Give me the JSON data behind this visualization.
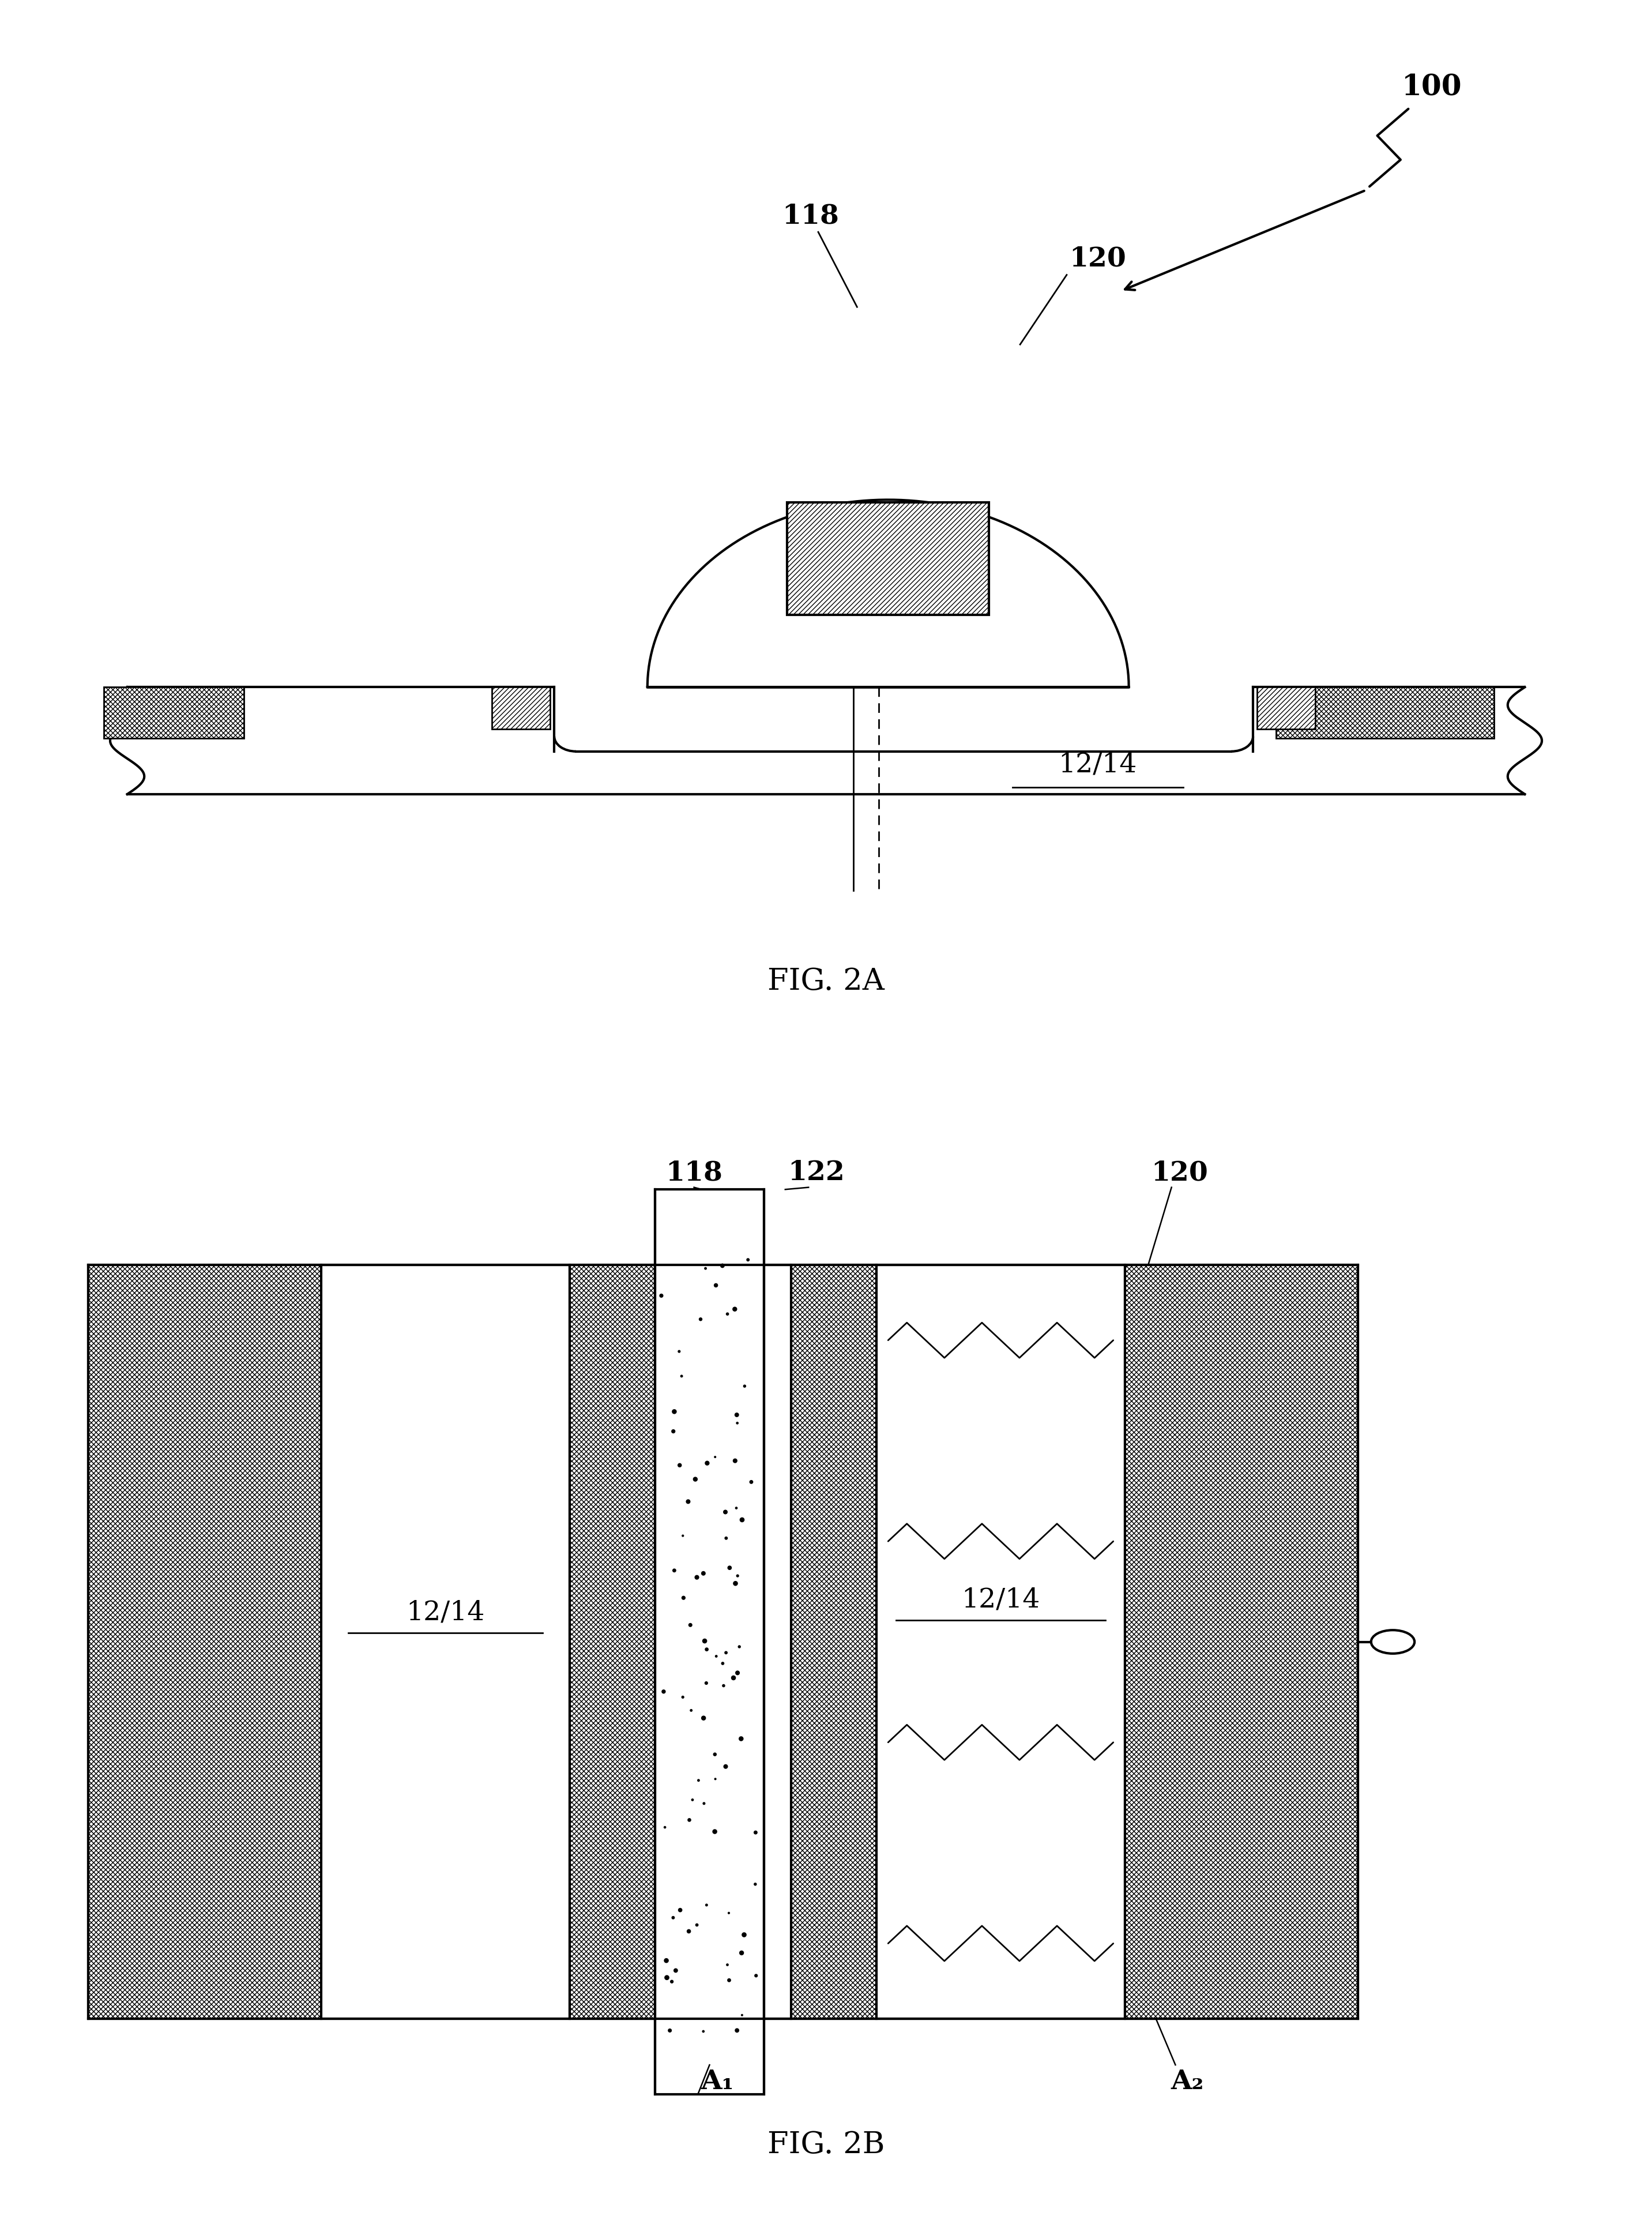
{
  "fig_width": 28.65,
  "fig_height": 38.68,
  "bg_color": "#ffffff",
  "label_100": "100",
  "label_118_a": "118",
  "label_120_a": "120",
  "label_118_b": "118",
  "label_120_b": "120",
  "label_122_b": "122",
  "label_1214_a": "12/14",
  "label_1214_b1": "12/14",
  "label_1214_b2": "12/14",
  "label_fig2a": "FIG. 2A",
  "label_fig2b": "FIG. 2B",
  "label_A1": "A₁",
  "label_A2": "A₂",
  "fs_label": 34,
  "fs_fig": 38,
  "lw": 3.0,
  "lw_thin": 2.0
}
